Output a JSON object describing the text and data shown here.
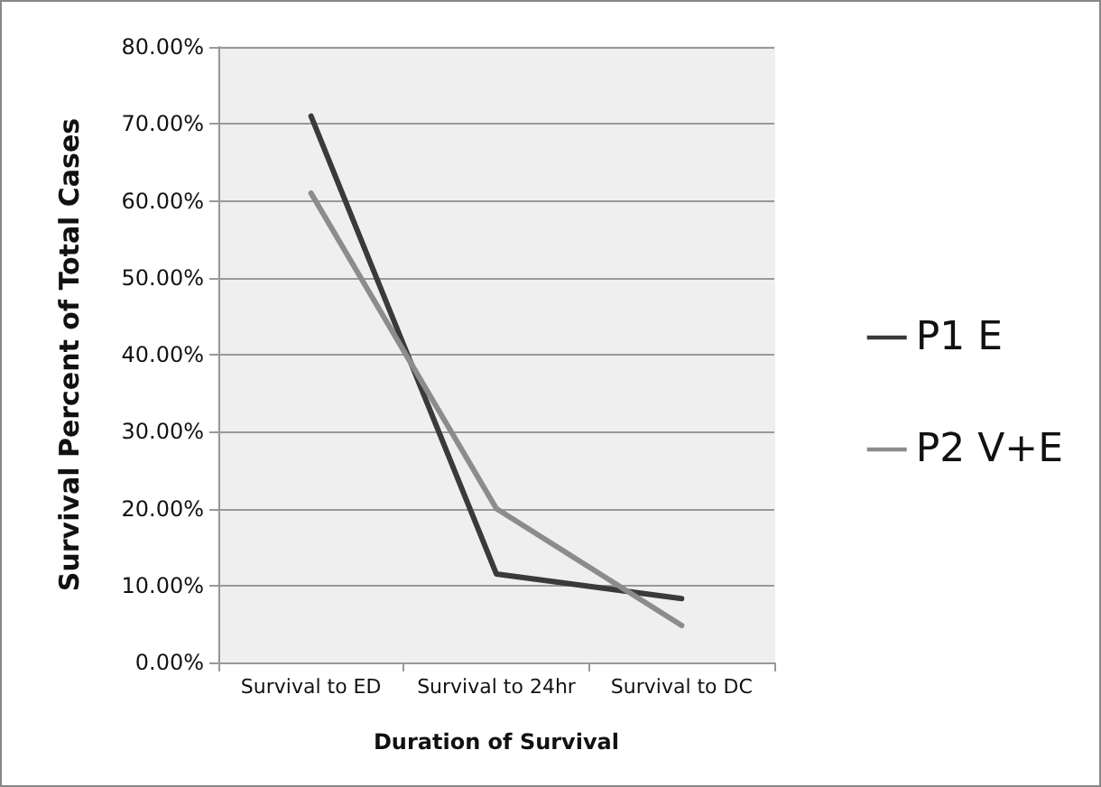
{
  "chart_data": {
    "type": "line",
    "xlabel": "Duration of Survival",
    "ylabel": "Survival Percent of Total Cases",
    "categories": [
      "Survival to ED",
      "Survival to 24hr",
      "Survival to DC"
    ],
    "series": [
      {
        "name": "P1 E",
        "color": "#3a3a3a",
        "values": [
          71,
          11.5,
          8.3
        ]
      },
      {
        "name": "P2 V+E",
        "color": "#8c8c8c",
        "values": [
          61,
          20,
          4.8
        ]
      }
    ],
    "ylim": [
      0,
      80
    ],
    "yticks": [
      {
        "value": 0,
        "label": "0.00%"
      },
      {
        "value": 10,
        "label": "10.00%"
      },
      {
        "value": 20,
        "label": "20.00%"
      },
      {
        "value": 30,
        "label": "30.00%"
      },
      {
        "value": 40,
        "label": "40.00%"
      },
      {
        "value": 50,
        "label": "50.00%"
      },
      {
        "value": 60,
        "label": "60.00%"
      },
      {
        "value": 70,
        "label": "70.00%"
      },
      {
        "value": 80,
        "label": "80.00%"
      }
    ],
    "grid": "y",
    "legend": "right",
    "marker": "none",
    "line_style": "solid"
  }
}
